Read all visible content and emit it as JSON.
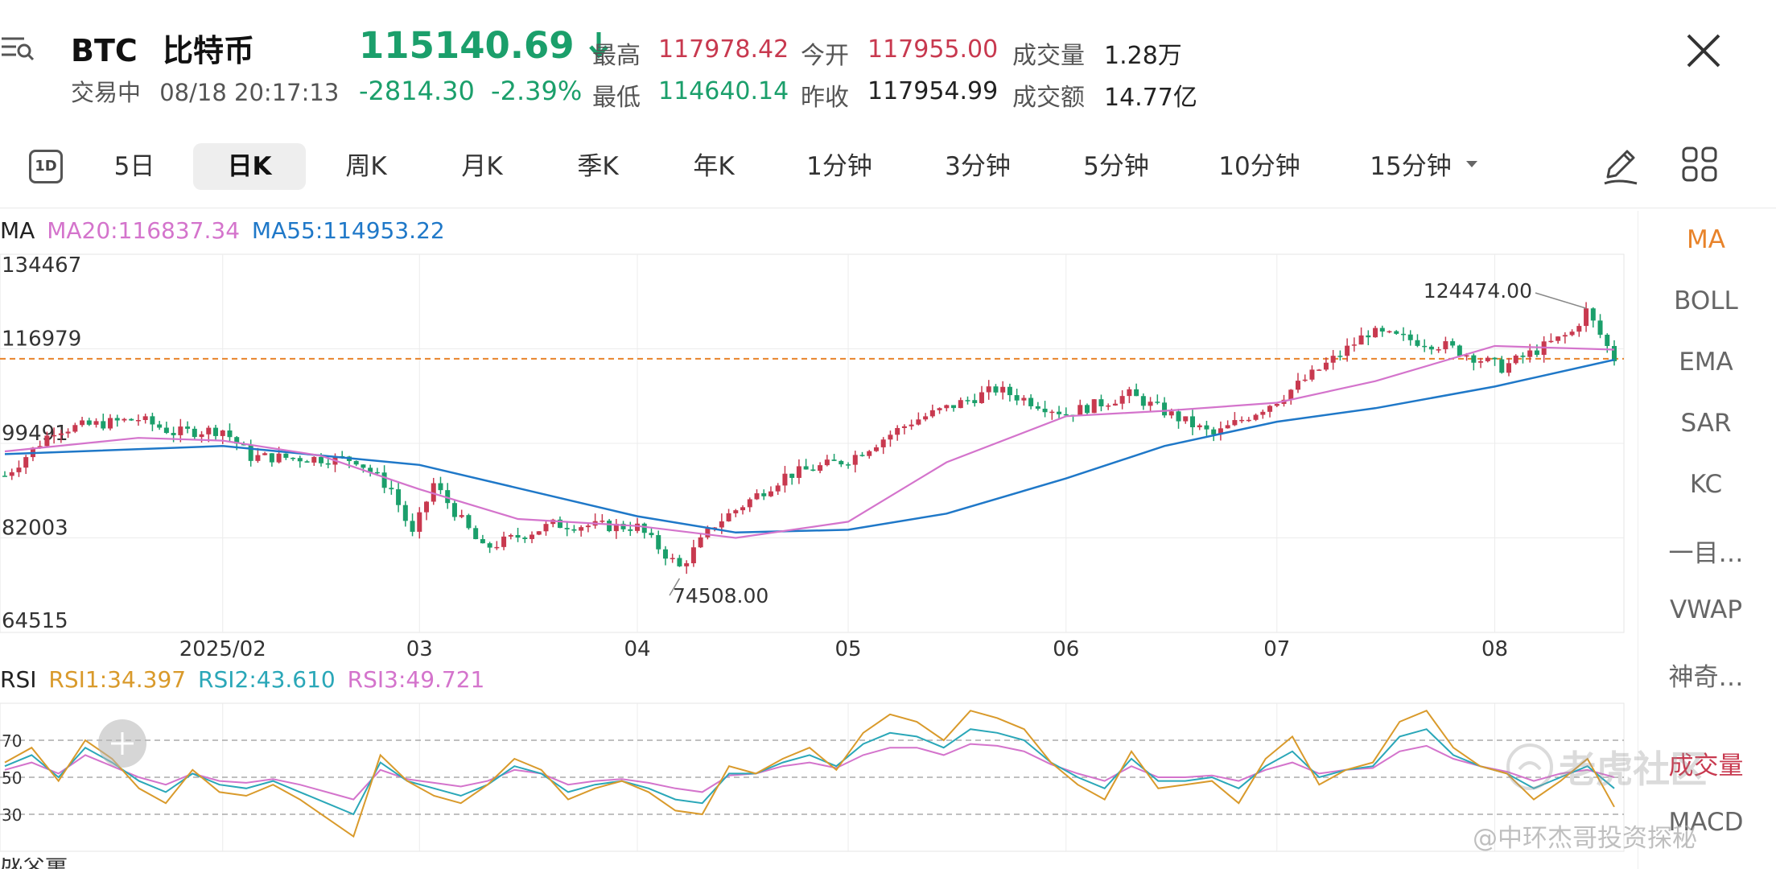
{
  "header": {
    "symbol": "BTC",
    "name": "比特币",
    "status": "交易中",
    "datetime": "08/18 20:17:13",
    "price": "115140.69",
    "change": "-2814.30",
    "change_pct": "-2.39%",
    "high_label": "最高",
    "high": "117978.42",
    "open_label": "今开",
    "open": "117955.00",
    "volume_label": "成交量",
    "volume": "1.28万",
    "low_label": "最低",
    "low": "114640.14",
    "prev_close_label": "昨收",
    "prev_close": "117954.99",
    "turnover_label": "成交额",
    "turnover": "14.77亿",
    "up_color": "#c8394f",
    "down_color": "#1b9f6b"
  },
  "tabs": {
    "t1d": "1D",
    "items": [
      "5日",
      "日K",
      "周K",
      "月K",
      "季K",
      "年K",
      "1分钟",
      "3分钟",
      "5分钟",
      "10分钟",
      "15分钟"
    ],
    "active": "日K"
  },
  "indicators": {
    "items": [
      "MA",
      "BOLL",
      "EMA",
      "SAR",
      "KC",
      "一目…",
      "VWAP",
      "神奇…",
      "成交量",
      "MACD"
    ],
    "active": "MA"
  },
  "main_legend": {
    "ma": "MA",
    "ma20": "MA20:116837.34",
    "ma55": "MA55:114953.22",
    "ma20_color": "#d474cc",
    "ma55_color": "#1f78c8"
  },
  "rsi_legend": {
    "rsi": "RSI",
    "rsi1": "RSI1:34.397",
    "rsi2": "RSI2:43.610",
    "rsi3": "RSI3:49.721",
    "rsi1_color": "#d99a2b",
    "rsi2_color": "#2aa7b8",
    "rsi3_color": "#d474cc"
  },
  "watermark": {
    "brand": "老虎社区",
    "author": "@中环杰哥投资探秘"
  },
  "chart_data": [
    {
      "type": "candlestick",
      "title": "",
      "y_ticks": [
        "134467",
        "116979",
        "99491",
        "82003",
        "64515"
      ],
      "ylim": [
        64515,
        134467
      ],
      "x_ticks": [
        "2025/02",
        "03",
        "04",
        "05",
        "06",
        "07",
        "08"
      ],
      "reference_price": 115140.69,
      "annotations": {
        "max": "124474.00",
        "min": "74508.00"
      },
      "grid": true,
      "ma20": [
        {
          "date": "2025-01-01",
          "value": 98000
        },
        {
          "date": "2025-01-20",
          "value": 100500
        },
        {
          "date": "2025-02-01",
          "value": 100000
        },
        {
          "date": "2025-02-15",
          "value": 97200
        },
        {
          "date": "2025-03-01",
          "value": 91000
        },
        {
          "date": "2025-03-15",
          "value": 85500
        },
        {
          "date": "2025-04-01",
          "value": 84200
        },
        {
          "date": "2025-04-15",
          "value": 82000
        },
        {
          "date": "2025-05-01",
          "value": 85000
        },
        {
          "date": "2025-05-15",
          "value": 96000
        },
        {
          "date": "2025-06-01",
          "value": 104500
        },
        {
          "date": "2025-06-15",
          "value": 105500
        },
        {
          "date": "2025-07-01",
          "value": 107000
        },
        {
          "date": "2025-07-15",
          "value": 111000
        },
        {
          "date": "2025-08-01",
          "value": 117500
        },
        {
          "date": "2025-08-18",
          "value": 116837.34
        }
      ],
      "ma55": [
        {
          "date": "2025-01-01",
          "value": 97500
        },
        {
          "date": "2025-02-01",
          "value": 99000
        },
        {
          "date": "2025-03-01",
          "value": 95500
        },
        {
          "date": "2025-04-01",
          "value": 86000
        },
        {
          "date": "2025-04-15",
          "value": 83000
        },
        {
          "date": "2025-05-01",
          "value": 83500
        },
        {
          "date": "2025-05-15",
          "value": 86500
        },
        {
          "date": "2025-06-01",
          "value": 93000
        },
        {
          "date": "2025-06-15",
          "value": 99000
        },
        {
          "date": "2025-07-01",
          "value": 103500
        },
        {
          "date": "2025-07-15",
          "value": 106000
        },
        {
          "date": "2025-08-01",
          "value": 110000
        },
        {
          "date": "2025-08-18",
          "value": 114953.22
        }
      ],
      "price_path": [
        {
          "date": "2025-01-01",
          "value": 93500
        },
        {
          "date": "2025-01-08",
          "value": 102000
        },
        {
          "date": "2025-01-20",
          "value": 104000
        },
        {
          "date": "2025-01-25",
          "value": 101500
        },
        {
          "date": "2025-02-01",
          "value": 102000
        },
        {
          "date": "2025-02-05",
          "value": 97000
        },
        {
          "date": "2025-02-20",
          "value": 96500
        },
        {
          "date": "2025-02-25",
          "value": 91000
        },
        {
          "date": "2025-02-28",
          "value": 82500
        },
        {
          "date": "2025-03-03",
          "value": 92000
        },
        {
          "date": "2025-03-10",
          "value": 80000
        },
        {
          "date": "2025-03-20",
          "value": 84500
        },
        {
          "date": "2025-04-01",
          "value": 84000
        },
        {
          "date": "2025-04-07",
          "value": 76500
        },
        {
          "date": "2025-04-12",
          "value": 84500
        },
        {
          "date": "2025-04-22",
          "value": 93500
        },
        {
          "date": "2025-05-01",
          "value": 96500
        },
        {
          "date": "2025-05-10",
          "value": 103500
        },
        {
          "date": "2025-05-22",
          "value": 109500
        },
        {
          "date": "2025-06-01",
          "value": 105000
        },
        {
          "date": "2025-06-10",
          "value": 108500
        },
        {
          "date": "2025-06-22",
          "value": 101000
        },
        {
          "date": "2025-07-01",
          "value": 107500
        },
        {
          "date": "2025-07-10",
          "value": 116000
        },
        {
          "date": "2025-07-14",
          "value": 120000
        },
        {
          "date": "2025-07-25",
          "value": 117500
        },
        {
          "date": "2025-08-02",
          "value": 113500
        },
        {
          "date": "2025-08-12",
          "value": 120000
        },
        {
          "date": "2025-08-14",
          "value": 124000
        },
        {
          "date": "2025-08-18",
          "value": 115140.69
        }
      ]
    },
    {
      "type": "line",
      "title": "RSI",
      "y_ticks": [
        "70",
        "50",
        "30"
      ],
      "ylim": [
        10,
        90
      ],
      "series": [
        {
          "name": "RSI1",
          "values": [
            58,
            66,
            48,
            70,
            60,
            44,
            36,
            54,
            42,
            40,
            46,
            38,
            28,
            18,
            62,
            48,
            40,
            36,
            46,
            60,
            54,
            38,
            44,
            48,
            42,
            32,
            30,
            56,
            52,
            60,
            66,
            54,
            74,
            84,
            80,
            70,
            86,
            82,
            76,
            58,
            46,
            38,
            64,
            44,
            46,
            48,
            36,
            60,
            72,
            46,
            54,
            58,
            80,
            86,
            66,
            56,
            52,
            38,
            48,
            60,
            34
          ]
        },
        {
          "name": "RSI2",
          "values": [
            56,
            62,
            50,
            66,
            58,
            48,
            42,
            52,
            46,
            44,
            48,
            42,
            36,
            30,
            58,
            48,
            44,
            40,
            46,
            56,
            52,
            42,
            46,
            48,
            44,
            38,
            36,
            52,
            52,
            58,
            62,
            56,
            68,
            74,
            72,
            66,
            76,
            74,
            70,
            58,
            50,
            44,
            60,
            48,
            48,
            50,
            44,
            56,
            64,
            50,
            54,
            56,
            72,
            76,
            62,
            56,
            52,
            44,
            50,
            56,
            44
          ]
        },
        {
          "name": "RSI3",
          "values": [
            54,
            58,
            52,
            62,
            56,
            50,
            46,
            52,
            48,
            47,
            49,
            46,
            42,
            38,
            54,
            49,
            47,
            45,
            48,
            54,
            52,
            46,
            48,
            49,
            47,
            44,
            42,
            51,
            52,
            56,
            58,
            55,
            62,
            66,
            66,
            62,
            68,
            67,
            64,
            57,
            52,
            48,
            56,
            50,
            50,
            51,
            48,
            54,
            58,
            52,
            54,
            55,
            64,
            67,
            60,
            56,
            53,
            48,
            52,
            54,
            50
          ]
        }
      ]
    }
  ]
}
